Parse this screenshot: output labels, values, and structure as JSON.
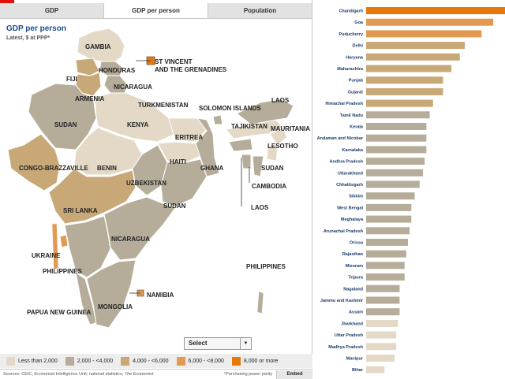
{
  "tabs": [
    {
      "label": "GDP"
    },
    {
      "label": "GDP per person"
    },
    {
      "label": "Population"
    }
  ],
  "map": {
    "title": "GDP per person",
    "subtitle": "Latest, $ at PPP*",
    "labels": [
      "GAMBIA",
      "ST VINCENT AND THE GRENADINES",
      "HONDURAS",
      "FIJI",
      "NICARAGUA",
      "ARMENIA",
      "TURKMENISTAN",
      "SOLOMON ISLANDS",
      "LAOS",
      "SUDAN",
      "KENYA",
      "TAJIKISTAN",
      "MAURITANIA",
      "ERITREA",
      "LESOTHO",
      "CONGO-BRAZZAVILLE",
      "BENIN",
      "HAITI",
      "GHANA",
      "SUDAN",
      "CAMBODIA",
      "UZBEKISTAN",
      "SRI LANKA",
      "SUDAN",
      "LAOS",
      "NICARAGUA",
      "UKRAINE",
      "PHILIPPINES",
      "PHILIPPINES",
      "NAMIBIA",
      "MONGOLIA",
      "PAPUA NEW GUINEA"
    ]
  },
  "select": {
    "label": "Select"
  },
  "legend": [
    {
      "label": "Less than 2,000",
      "color": "#e3d9c6"
    },
    {
      "label": "2,000 - <4,000",
      "color": "#b5ad9a"
    },
    {
      "label": "4,000 - <6,000",
      "color": "#c9a878"
    },
    {
      "label": "6,000 - <8,000",
      "color": "#e29a52"
    },
    {
      "label": "8,000 or more",
      "color": "#e8780a"
    }
  ],
  "footer": {
    "source": "Sources: CEIC; Economist Intelligence Unit; national statistics;",
    "source_italic": "The Economist",
    "ppp_note": "*Purchasing power parity",
    "embed_label": "Embed"
  },
  "chart_data": {
    "type": "bar",
    "orientation": "horizontal",
    "title": "GDP per person",
    "unit": "$ at PPP",
    "categories": [
      "Chandigarh",
      "Goa",
      "Puducherry",
      "Delhi",
      "Haryana",
      "Maharashtra",
      "Punjab",
      "Gujarat",
      "Himachal Pradesh",
      "Tamil Nadu",
      "Kerala",
      "Andaman and Nicobar",
      "Karnataka",
      "Andhra Pradesh",
      "Uttarakhand",
      "Chhattisgarh",
      "Sikkim",
      "West Bengal",
      "Meghalaya",
      "Arunachal Pradesh",
      "Orissa",
      "Rajasthan",
      "Mizoram",
      "Tripura",
      "Nagaland",
      "Jammu and Kashmir",
      "Assam",
      "Jharkhand",
      "Uttar Pradesh",
      "Madhya Pradesh",
      "Manipur",
      "Bihar"
    ],
    "values": [
      9300,
      7600,
      6900,
      5900,
      5600,
      5100,
      4600,
      4600,
      4000,
      3800,
      3600,
      3600,
      3600,
      3500,
      3400,
      3200,
      2900,
      2700,
      2700,
      2600,
      2500,
      2400,
      2300,
      2300,
      2000,
      2000,
      2000,
      1900,
      1800,
      1800,
      1700,
      1100
    ],
    "color_bins": [
      {
        "label": "Less than 2,000",
        "min": 0,
        "max": 2000,
        "color": "#e3d9c6"
      },
      {
        "label": "2,000 - <4,000",
        "min": 2000,
        "max": 4000,
        "color": "#b5ad9a"
      },
      {
        "label": "4,000 - <6,000",
        "min": 4000,
        "max": 6000,
        "color": "#c9a878"
      },
      {
        "label": "6,000 - <8,000",
        "min": 6000,
        "max": 8000,
        "color": "#e29a52"
      },
      {
        "label": "8,000 or more",
        "min": 8000,
        "max": 100000,
        "color": "#e8780a"
      }
    ],
    "xlim": [
      0,
      10000
    ]
  }
}
